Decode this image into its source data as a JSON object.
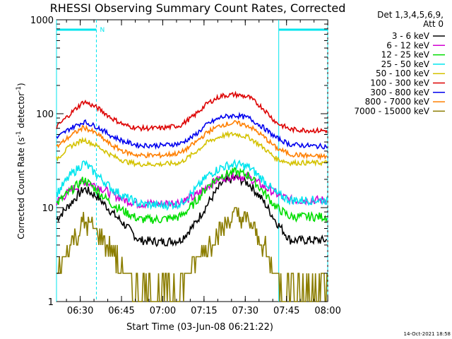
{
  "chart_data": {
    "type": "line",
    "title": "RHESSI Observing Summary Count Rates, Corrected",
    "xlabel": "Start Time (03-Jun-08 06:21:22)",
    "ylabel_main": "Corrected Count Rate (s",
    "ylabel_sup1": "-1",
    "ylabel_mid": " detector",
    "ylabel_sup2": "-1",
    "ylabel_end": ")",
    "x_unit": "minutes since 06:21:22",
    "xlim": [
      0,
      98.6
    ],
    "yscale": "log",
    "ylim": [
      1,
      1000
    ],
    "x_tick_labels": [
      "06:30",
      "06:45",
      "07:00",
      "07:15",
      "07:30",
      "07:45",
      "08:00"
    ],
    "x_ticks": [
      8.63,
      23.63,
      38.63,
      53.63,
      68.63,
      83.63,
      98.63
    ],
    "y_tick_labels": [
      "1",
      "10",
      "100",
      "1000"
    ],
    "y_ticks": [
      1,
      10,
      100,
      1000
    ],
    "legend_header": [
      "Det 1,3,4,5,6,9,",
      "Att 0"
    ],
    "legend_placement": "top-right outside",
    "timestamp": "14-Oct-2021 18:58",
    "flag_label": "N",
    "night_intervals": [
      [
        0,
        14.5
      ],
      [
        80.8,
        98.6
      ]
    ],
    "series": [
      {
        "name": "3 - 6 keV",
        "color": "#000000",
        "x": [
          0,
          5,
          10,
          15,
          20,
          25,
          30,
          38,
          45,
          50,
          55,
          60,
          65,
          70,
          75,
          80,
          85,
          95,
          98.6
        ],
        "y": [
          7.5,
          11,
          16,
          13,
          9,
          6.5,
          4.5,
          4.3,
          4.5,
          6.5,
          11,
          18,
          21,
          18,
          12,
          7,
          4.5,
          4.5,
          4.5
        ]
      },
      {
        "name": "6 - 12 keV",
        "color": "#d200d2",
        "x": [
          0,
          5,
          10,
          15,
          20,
          25,
          30,
          38,
          45,
          50,
          55,
          60,
          65,
          70,
          75,
          80,
          85,
          95,
          98.6
        ],
        "y": [
          11.5,
          15,
          19,
          17,
          14,
          12,
          11,
          11,
          11.5,
          13,
          17,
          21,
          22,
          21,
          17,
          14,
          12,
          12,
          12
        ]
      },
      {
        "name": "12 - 25 keV",
        "color": "#00dd00",
        "x": [
          0,
          5,
          10,
          15,
          20,
          25,
          30,
          38,
          45,
          50,
          55,
          60,
          65,
          70,
          75,
          80,
          85,
          95,
          98.6
        ],
        "y": [
          11,
          15,
          20,
          15,
          11,
          9,
          7.5,
          7.5,
          8,
          11,
          17,
          22,
          24,
          22,
          15,
          10,
          8,
          8,
          8
        ]
      },
      {
        "name": "25 - 50 keV",
        "color": "#00e5ee",
        "x": [
          0,
          5,
          10,
          15,
          20,
          25,
          30,
          38,
          45,
          50,
          55,
          60,
          65,
          70,
          75,
          80,
          85,
          95,
          98.6
        ],
        "y": [
          14,
          22,
          30,
          22,
          16,
          13,
          11,
          10.5,
          11,
          15,
          22,
          27,
          29,
          27,
          20,
          14,
          12,
          12,
          12
        ]
      },
      {
        "name": "50 - 100 keV",
        "color": "#d4c200",
        "x": [
          0,
          5,
          10,
          15,
          20,
          25,
          30,
          38,
          45,
          50,
          55,
          60,
          65,
          70,
          75,
          80,
          85,
          95,
          98.6
        ],
        "y": [
          33,
          45,
          53,
          45,
          36,
          31,
          29,
          29,
          30,
          38,
          50,
          58,
          61,
          56,
          44,
          33,
          30,
          30,
          30
        ]
      },
      {
        "name": "100 - 300 keV",
        "color": "#dd0000",
        "x": [
          0,
          5,
          10,
          15,
          20,
          25,
          30,
          38,
          45,
          50,
          55,
          60,
          65,
          70,
          75,
          80,
          85,
          95,
          98.6
        ],
        "y": [
          72,
          100,
          135,
          115,
          90,
          75,
          70,
          70,
          75,
          95,
          130,
          155,
          160,
          150,
          115,
          80,
          68,
          66,
          66
        ]
      },
      {
        "name": "300 - 800 keV",
        "color": "#0000ee",
        "x": [
          0,
          5,
          10,
          15,
          20,
          25,
          30,
          38,
          45,
          50,
          55,
          60,
          65,
          70,
          75,
          80,
          85,
          95,
          98.6
        ],
        "y": [
          55,
          70,
          82,
          72,
          58,
          50,
          46,
          46,
          48,
          58,
          78,
          92,
          96,
          90,
          72,
          55,
          47,
          45,
          45
        ]
      },
      {
        "name": "800 - 7000 keV",
        "color": "#ff7f00",
        "x": [
          0,
          5,
          10,
          15,
          20,
          25,
          30,
          38,
          45,
          50,
          55,
          60,
          65,
          70,
          75,
          80,
          85,
          95,
          98.6
        ],
        "y": [
          44,
          58,
          72,
          60,
          46,
          39,
          36,
          36,
          38,
          48,
          64,
          76,
          80,
          74,
          58,
          43,
          37,
          35,
          35
        ]
      },
      {
        "name": "7000 - 15000 keV",
        "color": "#8b7d00",
        "x": [
          0,
          3,
          5,
          10,
          15,
          20,
          25,
          28,
          30,
          38,
          45,
          48,
          50,
          55,
          60,
          65,
          70,
          75,
          78,
          81,
          86,
          95,
          98.6
        ],
        "y": [
          2,
          3,
          4,
          7,
          5.5,
          3.5,
          2,
          1.5,
          1.5,
          1.3,
          1.5,
          2,
          2.5,
          4,
          6,
          8.5,
          7,
          4,
          2.5,
          1.5,
          1.5,
          1.5,
          1.5
        ]
      }
    ]
  }
}
